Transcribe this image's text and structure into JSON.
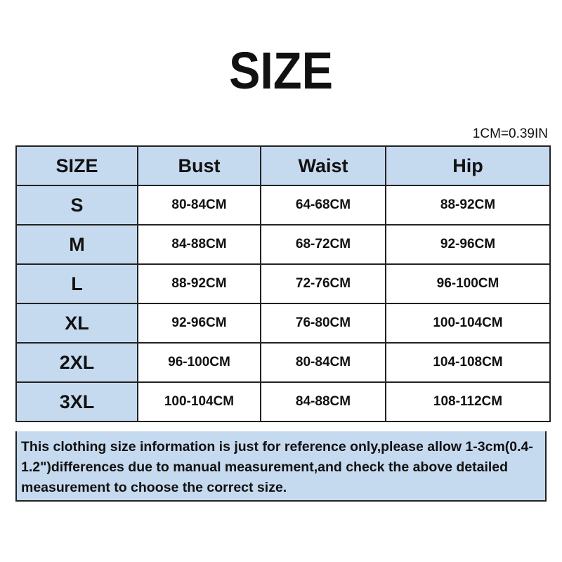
{
  "title": "SIZE",
  "conversion": "1CM=0.39IN",
  "table": {
    "headers": [
      "SIZE",
      "Bust",
      "Waist",
      "Hip"
    ],
    "rows": [
      [
        "S",
        "80-84CM",
        "64-68CM",
        "88-92CM"
      ],
      [
        "M",
        "84-88CM",
        "68-72CM",
        "92-96CM"
      ],
      [
        "L",
        "88-92CM",
        "72-76CM",
        "96-100CM"
      ],
      [
        "XL",
        "92-96CM",
        "76-80CM",
        "100-104CM"
      ],
      [
        "2XL",
        "96-100CM",
        "80-84CM",
        "104-108CM"
      ],
      [
        "3XL",
        "100-104CM",
        "84-88CM",
        "108-112CM"
      ]
    ]
  },
  "note": "This clothing size information is just for reference only,please allow 1-3cm(0.4-1.2\")differences due to manual measurement,and check the above detailed measurement to choose the correct size.",
  "colors": {
    "header_bg": "#c6daef",
    "border": "#222222"
  }
}
